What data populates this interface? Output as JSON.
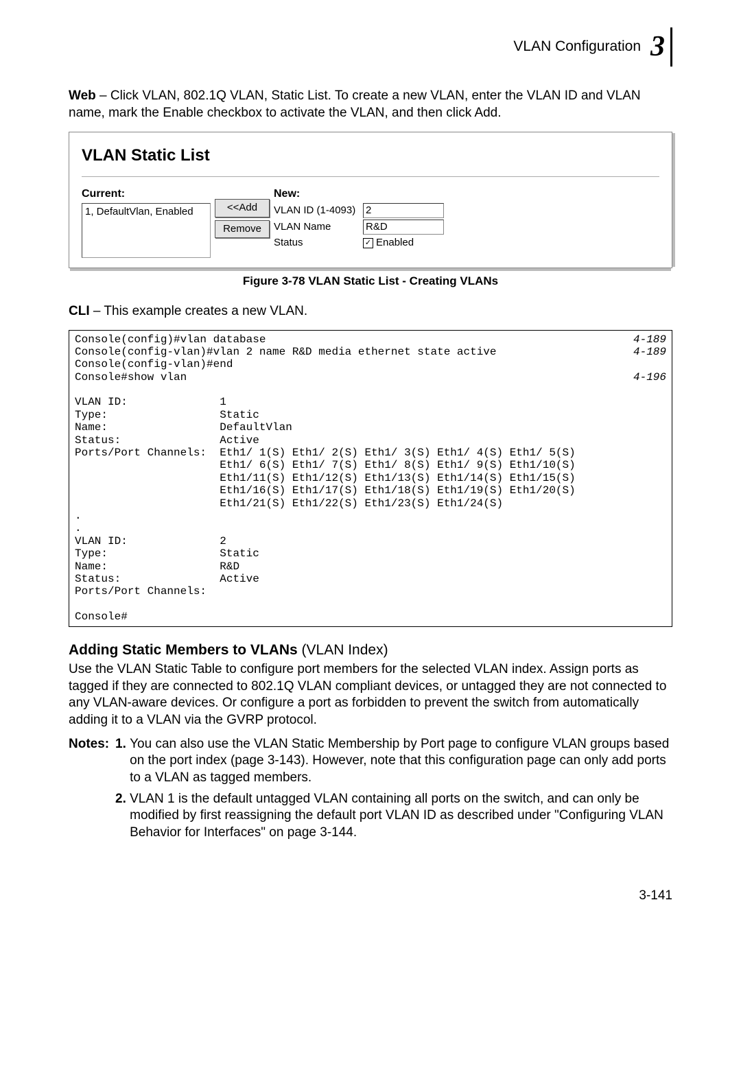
{
  "header": {
    "title": "VLAN Configuration",
    "chapter": "3"
  },
  "intro": {
    "label": "Web",
    "text": " – Click VLAN, 802.1Q VLAN, Static List. To create a new VLAN, enter the VLAN ID and VLAN name, mark the Enable checkbox to activate the VLAN, and then click Add."
  },
  "screenshot": {
    "title": "VLAN Static List",
    "current_label": "Current:",
    "current_item": "1, DefaultVlan, Enabled",
    "add_btn": "<<Add",
    "remove_btn": "Remove",
    "new_label": "New:",
    "row1_key": "VLAN ID (1-4093)",
    "row1_val": "2",
    "row2_key": "VLAN Name",
    "row2_val": "R&D",
    "row3_key": "Status",
    "row3_check": "✓",
    "row3_val": "Enabled"
  },
  "figure_caption": "Figure 3-78   VLAN Static List - Creating VLANs",
  "cli_intro_label": "CLI",
  "cli_intro_text": " – This example creates a new VLAN.",
  "cli": {
    "l1": "Console(config)#vlan database",
    "r1": "4-189",
    "l2": "Console(config-vlan)#vlan 2 name R&D media ethernet state active",
    "r2": "4-189",
    "l3": "Console(config-vlan)#end",
    "l4": "Console#show vlan",
    "r4": "4-196",
    "body": "\nVLAN ID:              1\nType:                 Static\nName:                 DefaultVlan\nStatus:               Active\nPorts/Port Channels:  Eth1/ 1(S) Eth1/ 2(S) Eth1/ 3(S) Eth1/ 4(S) Eth1/ 5(S)\n                      Eth1/ 6(S) Eth1/ 7(S) Eth1/ 8(S) Eth1/ 9(S) Eth1/10(S)\n                      Eth1/11(S) Eth1/12(S) Eth1/13(S) Eth1/14(S) Eth1/15(S)\n                      Eth1/16(S) Eth1/17(S) Eth1/18(S) Eth1/19(S) Eth1/20(S)\n                      Eth1/21(S) Eth1/22(S) Eth1/23(S) Eth1/24(S)\n.\n.\nVLAN ID:              2\nType:                 Static\nName:                 R&D\nStatus:               Active\nPorts/Port Channels:\n\nConsole#"
  },
  "section": {
    "heading_bold": "Adding Static Members to VLANs",
    "heading_norm": " (VLAN Index)",
    "body": "Use the VLAN Static Table to configure port members for the selected VLAN index. Assign ports as tagged if they are connected to 802.1Q VLAN compliant devices, or untagged they are not connected to any VLAN-aware devices. Or configure a port as forbidden to prevent the switch from automatically adding it to a VLAN via the GVRP protocol."
  },
  "notes": {
    "label": "Notes:",
    "items": [
      "You can also use the VLAN Static Membership by Port page to configure VLAN groups based on the port index (page 3-143). However, note that this configuration page can only add ports to a VLAN as tagged members.",
      "VLAN 1 is the default untagged VLAN containing all ports on the switch, and can only be modified by first reassigning the default port VLAN ID as described under \"Configuring VLAN Behavior for Interfaces\" on page 3-144."
    ]
  },
  "page_number": "3-141"
}
